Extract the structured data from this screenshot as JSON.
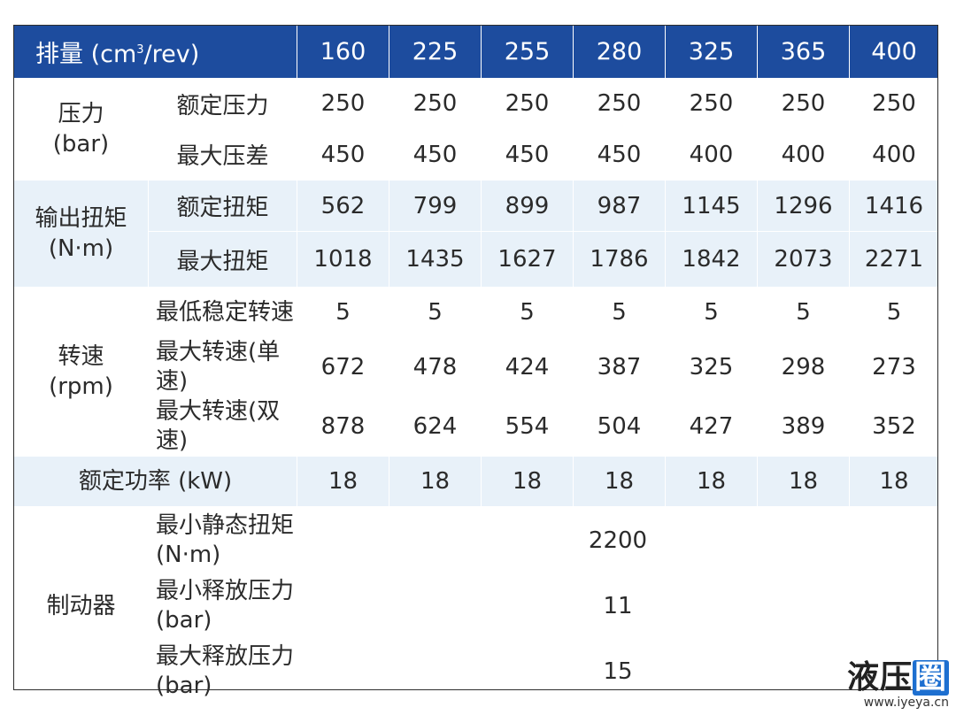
{
  "header": {
    "label_prefix": "排量 (cm",
    "label_sup": "3",
    "label_suffix": "/rev)",
    "displacements": [
      "160",
      "225",
      "255",
      "280",
      "325",
      "365",
      "400"
    ]
  },
  "pressure": {
    "group": "压力",
    "unit": "(bar)",
    "rows": [
      {
        "label": "额定压力",
        "values": [
          "250",
          "250",
          "250",
          "250",
          "250",
          "250",
          "250"
        ]
      },
      {
        "label": "最大压差",
        "values": [
          "450",
          "450",
          "450",
          "450",
          "400",
          "400",
          "400"
        ]
      }
    ]
  },
  "torque": {
    "group": "输出扭矩",
    "unit": "(N·m)",
    "rows": [
      {
        "label": "额定扭矩",
        "values": [
          "562",
          "799",
          "899",
          "987",
          "1145",
          "1296",
          "1416"
        ]
      },
      {
        "label": "最大扭矩",
        "values": [
          "1018",
          "1435",
          "1627",
          "1786",
          "1842",
          "2073",
          "2271"
        ]
      }
    ]
  },
  "speed": {
    "group": "转速",
    "unit": "(rpm)",
    "rows": [
      {
        "label": "最低稳定转速",
        "values": [
          "5",
          "5",
          "5",
          "5",
          "5",
          "5",
          "5"
        ]
      },
      {
        "label": "最大转速(单速)",
        "values": [
          "672",
          "478",
          "424",
          "387",
          "325",
          "298",
          "273"
        ]
      },
      {
        "label": "最大转速(双速)",
        "values": [
          "878",
          "624",
          "554",
          "504",
          "427",
          "389",
          "352"
        ]
      }
    ]
  },
  "power": {
    "label": "额定功率 (kW)",
    "values": [
      "18",
      "18",
      "18",
      "18",
      "18",
      "18",
      "18"
    ]
  },
  "brake": {
    "group": "制动器",
    "rows": [
      {
        "label": "最小静态扭矩",
        "unit": "(N·m)",
        "value": "2200"
      },
      {
        "label": "最小释放压力",
        "unit": "(bar)",
        "value": "11"
      },
      {
        "label": "最大释放压力",
        "unit": "(bar)",
        "value": "15"
      }
    ]
  },
  "watermark": {
    "brand_main": "液压",
    "brand_mark": "圈",
    "url": "www.iyeya.cn"
  },
  "colors": {
    "header_bg": "#1d4c9e",
    "band_bg": "#e8f1f9",
    "border": "#2e2e2e"
  }
}
